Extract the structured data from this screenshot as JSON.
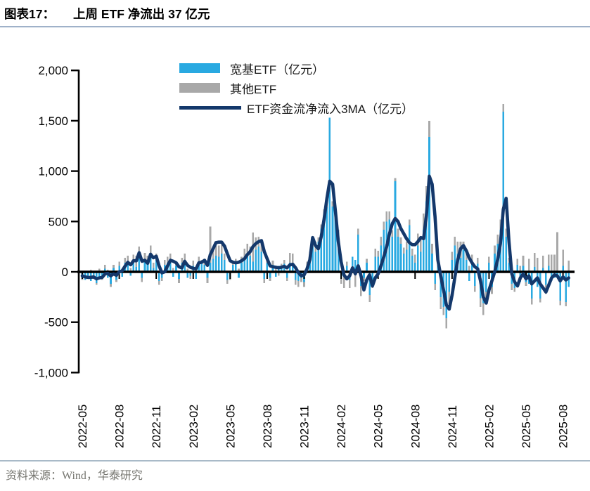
{
  "header": {
    "figure_label": "图表17：",
    "title": "上周 ETF 净流出 37 亿元"
  },
  "footer": {
    "source": "资料来源：Wind，华泰研究"
  },
  "colors": {
    "axis": "#000000",
    "zero_line": "#000000",
    "title_underline": "#9fb1c9",
    "footer_rule": "#a9bac8",
    "footer_text": "#75756f",
    "broad_etf_bar": "#29a9e1",
    "other_etf_bar": "#a8a8a8",
    "ma_line": "#14386b"
  },
  "chart_data": {
    "type": "bar",
    "subtype": "weekly stacked bars with 3-week moving-average line overlay",
    "title": "上周 ETF 净流出 37 亿元",
    "unit": "亿元",
    "grid": false,
    "legend_position": "top-center",
    "x_frequency": "weekly",
    "x_tick_labels": [
      "2022-05",
      "2022-08",
      "2022-11",
      "2023-02",
      "2023-05",
      "2023-08",
      "2023-11",
      "2024-02",
      "2024-05",
      "2024-08",
      "2024-11",
      "2025-02",
      "2025-05",
      "2025-08"
    ],
    "y_axis": {
      "range": [
        -1000,
        2000
      ],
      "ticks": [
        2000,
        1500,
        1000,
        500,
        0,
        -500,
        -1000
      ],
      "tick_labels": [
        "2,000",
        "1,500",
        "1,000",
        "500",
        "0",
        "-500",
        "-1,000"
      ]
    },
    "series": [
      {
        "name": "宽基ETF（亿元）",
        "type": "bar",
        "color": "#29a9e1",
        "values": [
          -60,
          -80,
          -40,
          -90,
          -30,
          -110,
          -50,
          -70,
          30,
          -60,
          -120,
          40,
          -80,
          60,
          -50,
          90,
          70,
          -40,
          110,
          50,
          140,
          -60,
          130,
          90,
          170,
          40,
          120,
          -90,
          -60,
          70,
          90,
          110,
          -50,
          60,
          -70,
          90,
          100,
          -60,
          -40,
          60,
          -70,
          90,
          80,
          70,
          -60,
          90,
          130,
          160,
          150,
          180,
          120,
          -80,
          -50,
          70,
          80,
          -60,
          90,
          150,
          180,
          160,
          100,
          220,
          250,
          200,
          -70,
          90,
          -60,
          70,
          -50,
          60,
          50,
          80,
          -60,
          90,
          60,
          -80,
          -90,
          -60,
          -100,
          60,
          150,
          250,
          200,
          300,
          430,
          560,
          640,
          1530,
          650,
          550,
          380,
          -60,
          -40,
          60,
          -80,
          150,
          120,
          370,
          -140,
          -60,
          90,
          -230,
          -120,
          150,
          150,
          260,
          420,
          500,
          520,
          350,
          900,
          350,
          280,
          180,
          220,
          465,
          160,
          90,
          260,
          200,
          420,
          700,
          1340,
          180,
          -120,
          150,
          -250,
          -350,
          -460,
          -200,
          120,
          260,
          180,
          140,
          220,
          120,
          -90,
          100,
          -140,
          80,
          -260,
          -310,
          -200,
          90,
          -150,
          180,
          280,
          420,
          1590,
          350,
          90,
          -120,
          -160,
          70,
          -100,
          60,
          -100,
          -120,
          -265,
          50,
          -150,
          -265,
          40,
          -130,
          60,
          -90,
          -60,
          -50,
          -285,
          60,
          -300,
          -150
        ]
      },
      {
        "name": "其他ETF",
        "type": "bar",
        "color": "#a8a8a8",
        "values": [
          -20,
          10,
          -30,
          20,
          -10,
          -20,
          30,
          -10,
          40,
          20,
          -30,
          30,
          -20,
          40,
          30,
          50,
          90,
          40,
          60,
          110,
          110,
          -40,
          60,
          70,
          90,
          50,
          60,
          -40,
          -30,
          50,
          60,
          70,
          40,
          30,
          -40,
          50,
          80,
          30,
          -30,
          50,
          40,
          60,
          40,
          60,
          -50,
          360,
          80,
          100,
          110,
          90,
          60,
          -40,
          -30,
          40,
          50,
          30,
          60,
          80,
          100,
          90,
          290,
          120,
          100,
          110,
          -40,
          50,
          -30,
          40,
          30,
          -40,
          30,
          40,
          -30,
          100,
          120,
          -50,
          -60,
          -40,
          -50,
          40,
          50,
          50,
          100,
          40,
          40,
          60,
          40,
          0,
          50,
          0,
          40,
          -60,
          -120,
          40,
          -80,
          0,
          -150,
          60,
          -100,
          -30,
          40,
          -70,
          -40,
          80,
          60,
          90,
          80,
          100,
          80,
          60,
          30,
          80,
          60,
          60,
          80,
          55,
          70,
          80,
          120,
          150,
          160,
          150,
          160,
          100,
          -60,
          70,
          -120,
          -80,
          -100,
          -120,
          80,
          90,
          120,
          160,
          80,
          90,
          60,
          70,
          -60,
          60,
          -90,
          -120,
          -80,
          60,
          -70,
          80,
          90,
          100,
          75,
          80,
          50,
          -60,
          -40,
          60,
          60,
          100,
          -40,
          130,
          -60,
          140,
          140,
          -40,
          120,
          -90,
          110,
          170,
          170,
          395,
          -45,
          160,
          -40,
          113
        ]
      },
      {
        "name": "ETF资金流净流入3MA（亿元）",
        "type": "line",
        "color": "#14386b",
        "values": [
          -40,
          -50,
          -55,
          -55,
          -50,
          -70,
          -60,
          -55,
          -20,
          -15,
          -40,
          -20,
          -35,
          0,
          10,
          55,
          95,
          70,
          110,
          110,
          190,
          105,
          115,
          85,
          175,
          140,
          155,
          60,
          -10,
          0,
          60,
          115,
          105,
          90,
          50,
          40,
          105,
          65,
          45,
          35,
          30,
          90,
          95,
          115,
          65,
          170,
          230,
          290,
          295,
          295,
          255,
          180,
          110,
          95,
          90,
          95,
          110,
          130,
          170,
          200,
          250,
          280,
          300,
          310,
          200,
          130,
          60,
          50,
          45,
          40,
          45,
          55,
          40,
          70,
          75,
          40,
          -10,
          -40,
          -30,
          30,
          120,
          340,
          260,
          230,
          350,
          520,
          730,
          900,
          870,
          600,
          300,
          100,
          -30,
          -70,
          -40,
          40,
          -20,
          60,
          -40,
          -180,
          -80,
          -30,
          -140,
          -60,
          -20,
          60,
          150,
          250,
          380,
          480,
          530,
          500,
          430,
          380,
          330,
          290,
          270,
          270,
          300,
          340,
          330,
          560,
          950,
          870,
          550,
          120,
          -40,
          -180,
          -330,
          -370,
          -230,
          -50,
          120,
          230,
          260,
          210,
          140,
          90,
          50,
          30,
          -90,
          -250,
          -310,
          -180,
          -90,
          0,
          120,
          280,
          620,
          730,
          300,
          -20,
          -100,
          -140,
          -60,
          -20,
          -70,
          -40,
          -120,
          -90,
          -60,
          -120,
          -160,
          -200,
          -130,
          -60,
          -30,
          -40,
          -90,
          -50,
          -80,
          -60
        ]
      }
    ]
  }
}
